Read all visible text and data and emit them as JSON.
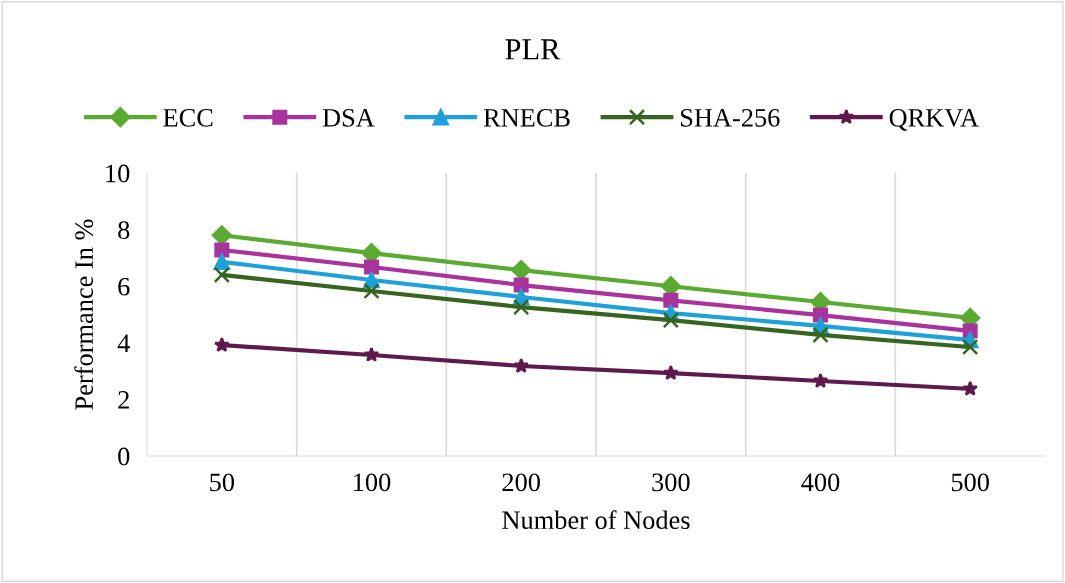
{
  "chart_data": {
    "type": "line",
    "title": "PLR",
    "xlabel": "Number of Nodes",
    "ylabel": "Performance In %",
    "categories": [
      "50",
      "100",
      "200",
      "300",
      "400",
      "500"
    ],
    "series": [
      {
        "name": "ECC",
        "color": "#5aaa32",
        "marker": "diamond",
        "values": [
          7.8,
          7.17,
          6.57,
          6.0,
          5.44,
          4.88
        ]
      },
      {
        "name": "DSA",
        "color": "#a8339c",
        "marker": "square",
        "values": [
          7.28,
          6.68,
          6.04,
          5.5,
          4.98,
          4.42
        ]
      },
      {
        "name": "RNECB",
        "color": "#1ea0d8",
        "marker": "triangle",
        "values": [
          6.86,
          6.22,
          5.62,
          5.05,
          4.6,
          4.1
        ]
      },
      {
        "name": "SHA-256",
        "color": "#37641e",
        "marker": "cross",
        "values": [
          6.4,
          5.83,
          5.26,
          4.8,
          4.28,
          3.85
        ]
      },
      {
        "name": "QRKVA",
        "color": "#5e1a4e",
        "marker": "star",
        "values": [
          3.92,
          3.57,
          3.18,
          2.93,
          2.65,
          2.37
        ]
      }
    ],
    "ylim": [
      0,
      10
    ],
    "yticks": [
      0,
      2,
      4,
      6,
      8,
      10
    ],
    "grid": "x",
    "legend": "top",
    "line_style": "solid"
  }
}
